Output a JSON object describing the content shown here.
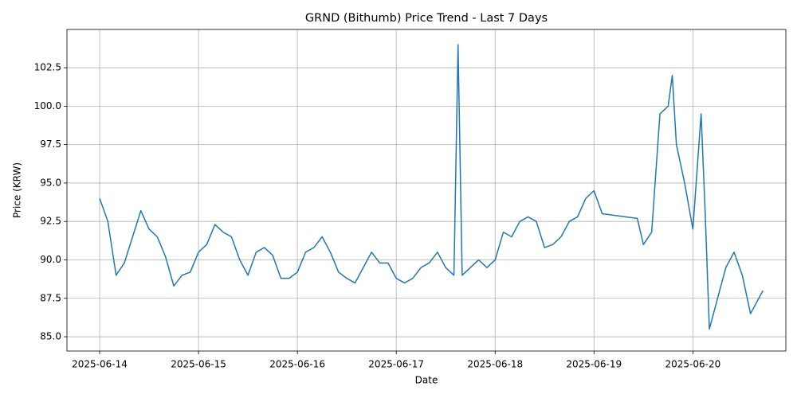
{
  "chart_data": {
    "type": "line",
    "title": "GRND (Bithumb) Price Trend - Last 7 Days",
    "xlabel": "Date",
    "ylabel": "Price (KRW)",
    "color": "#1f77b4",
    "grid": true,
    "xlim": [
      "2025-06-13T16:04",
      "2025-06-20T22:34"
    ],
    "xticks": [
      "2025-06-14",
      "2025-06-15",
      "2025-06-16",
      "2025-06-17",
      "2025-06-18",
      "2025-06-19",
      "2025-06-20"
    ],
    "ylim": [
      84.07,
      104.99
    ],
    "yticks": [
      {
        "value": 85,
        "label": "85.0"
      },
      87.5,
      {
        "value": 90,
        "label": "90.0"
      },
      92.5,
      {
        "value": 95,
        "label": "95.0"
      },
      97.5,
      {
        "value": 100,
        "label": "100.0"
      },
      102.5
    ],
    "x": [
      "2025-06-14T00:00",
      "2025-06-14T02:00",
      "2025-06-14T04:00",
      "2025-06-14T06:00",
      "2025-06-14T08:00",
      "2025-06-14T10:00",
      "2025-06-14T12:00",
      "2025-06-14T14:00",
      "2025-06-14T16:00",
      "2025-06-14T18:00",
      "2025-06-14T20:00",
      "2025-06-14T22:00",
      "2025-06-15T00:00",
      "2025-06-15T02:00",
      "2025-06-15T04:00",
      "2025-06-15T06:00",
      "2025-06-15T08:00",
      "2025-06-15T10:00",
      "2025-06-15T12:00",
      "2025-06-15T14:00",
      "2025-06-15T16:00",
      "2025-06-15T18:00",
      "2025-06-15T20:00",
      "2025-06-15T22:00",
      "2025-06-16T00:00",
      "2025-06-16T02:00",
      "2025-06-16T04:00",
      "2025-06-16T06:00",
      "2025-06-16T08:00",
      "2025-06-16T10:00",
      "2025-06-16T12:00",
      "2025-06-16T14:00",
      "2025-06-16T16:00",
      "2025-06-16T18:00",
      "2025-06-16T20:00",
      "2025-06-16T22:00",
      "2025-06-17T00:00",
      "2025-06-17T02:00",
      "2025-06-17T04:00",
      "2025-06-17T06:00",
      "2025-06-17T08:00",
      "2025-06-17T10:00",
      "2025-06-17T12:00",
      "2025-06-17T14:00",
      "2025-06-17T15:00",
      "2025-06-17T16:00",
      "2025-06-17T18:00",
      "2025-06-17T20:00",
      "2025-06-17T22:00",
      "2025-06-18T00:00",
      "2025-06-18T02:00",
      "2025-06-18T04:00",
      "2025-06-18T06:00",
      "2025-06-18T08:00",
      "2025-06-18T10:00",
      "2025-06-18T12:00",
      "2025-06-18T14:00",
      "2025-06-18T16:00",
      "2025-06-18T18:00",
      "2025-06-18T20:00",
      "2025-06-18T22:00",
      "2025-06-19T00:00",
      "2025-06-19T02:00",
      "2025-06-19T10:30",
      "2025-06-19T12:00",
      "2025-06-19T14:00",
      "2025-06-19T16:00",
      "2025-06-19T18:00",
      "2025-06-19T19:00",
      "2025-06-19T20:00",
      "2025-06-19T22:00",
      "2025-06-20T00:00",
      "2025-06-20T02:00",
      "2025-06-20T03:00",
      "2025-06-20T04:00",
      "2025-06-20T06:00",
      "2025-06-20T08:00",
      "2025-06-20T10:00",
      "2025-06-20T12:00",
      "2025-06-20T14:00",
      "2025-06-20T16:00",
      "2025-06-20T17:00"
    ],
    "values": [
      94.0,
      92.5,
      89.0,
      89.8,
      91.5,
      93.2,
      92.0,
      91.5,
      90.2,
      88.3,
      89.0,
      89.2,
      90.5,
      91.0,
      92.3,
      91.8,
      91.5,
      90.0,
      89.0,
      90.5,
      90.8,
      90.3,
      88.8,
      88.8,
      89.2,
      90.5,
      90.8,
      91.5,
      90.5,
      89.2,
      88.8,
      88.5,
      89.5,
      90.5,
      89.8,
      89.8,
      88.8,
      88.5,
      88.8,
      89.5,
      89.8,
      90.5,
      89.5,
      89.0,
      104.0,
      89.0,
      89.5,
      90.0,
      89.5,
      90.0,
      91.8,
      91.5,
      92.5,
      92.8,
      92.5,
      90.8,
      91.0,
      91.5,
      92.5,
      92.8,
      94.0,
      94.5,
      93.0,
      92.7,
      91.0,
      91.8,
      99.5,
      100.0,
      102.0,
      97.5,
      95.0,
      92.0,
      99.5,
      93.0,
      85.5,
      87.5,
      89.5,
      90.5,
      89.0,
      86.5,
      87.5,
      88.0
    ]
  }
}
